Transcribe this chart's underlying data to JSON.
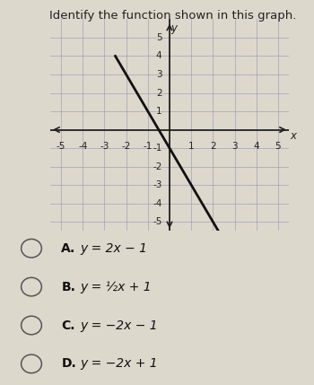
{
  "title": "Identify the function shown in this graph.",
  "title_fontsize": 9.5,
  "title_color": "#222222",
  "bg_color": "#ddd8cc",
  "graph_bg": "#e8e4db",
  "grid_color": "#9999bb",
  "axis_color": "#222222",
  "line_color": "#111111",
  "line_slope": -2,
  "line_intercept": -1,
  "line_x_start": -2.5,
  "line_x_end": 2.3,
  "x_range": [
    -5.5,
    5.5
  ],
  "y_range": [
    -5.5,
    6.0
  ],
  "x_ticks": [
    -5,
    -4,
    -3,
    -2,
    -1,
    1,
    2,
    3,
    4,
    5
  ],
  "y_ticks": [
    -5,
    -4,
    -3,
    -2,
    -1,
    1,
    2,
    3,
    4,
    5
  ],
  "tick_fontsize": 7.5,
  "label_fontsize": 8.5,
  "choices": [
    {
      "label": "A.",
      "math_parts": [
        "y",
        "=",
        "2x",
        "−",
        "1"
      ]
    },
    {
      "label": "B.",
      "math_parts": [
        "y",
        "=",
        "½x",
        "+",
        "1"
      ]
    },
    {
      "label": "C.",
      "math_parts": [
        "y",
        "=",
        "−2x",
        "−",
        "1"
      ]
    },
    {
      "label": "D.",
      "math_parts": [
        "y",
        "=",
        "−2x",
        "+",
        "1"
      ]
    }
  ],
  "choice_texts": [
    "y = 2x − 1",
    "y = ½x + 1",
    "y = −2x − 1",
    "y = −2x + 1"
  ],
  "choice_fontsize": 10,
  "circle_color": "#555555"
}
